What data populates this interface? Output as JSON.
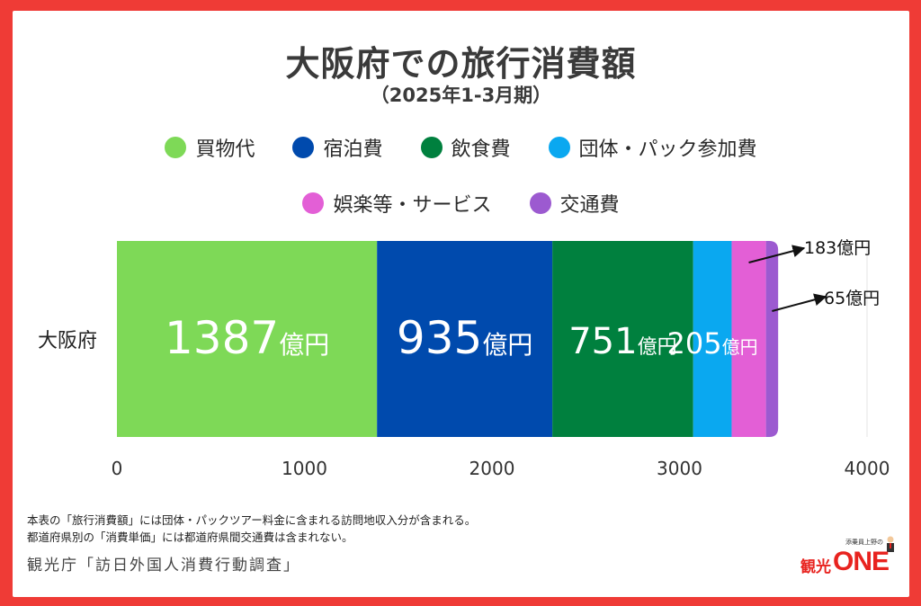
{
  "title": "大阪府での旅行消費額",
  "subtitle": "（2025年1-3月期）",
  "colors": {
    "background": "#ef3b36",
    "card": "#ffffff"
  },
  "chart_data": {
    "type": "bar",
    "orientation": "horizontal",
    "stacked": true,
    "categories": [
      "大阪府"
    ],
    "unit": "億円",
    "xlim": [
      0,
      4000
    ],
    "xticks": [
      0,
      1000,
      2000,
      3000,
      4000
    ],
    "grid": false,
    "legend_position": "top",
    "series": [
      {
        "name": "買物代",
        "values": [
          1387
        ],
        "color": "#7ed957",
        "label_num": "1387",
        "label_unit": "億円"
      },
      {
        "name": "宿泊費",
        "values": [
          935
        ],
        "color": "#004aad",
        "label_num": "935",
        "label_unit": "億円"
      },
      {
        "name": "飲食費",
        "values": [
          751
        ],
        "color": "#00803e",
        "label_num": "751",
        "label_unit": "億円"
      },
      {
        "name": "団体・パック参加費",
        "values": [
          205
        ],
        "color": "#0aa8f0",
        "label_num": "205",
        "label_unit": "億円"
      },
      {
        "name": "娯楽等・サービス",
        "values": [
          183
        ],
        "color": "#e35fd6",
        "label_num": "183",
        "label_unit": "億円"
      },
      {
        "name": "交通費",
        "values": [
          65
        ],
        "color": "#9c5ad0",
        "label_num": "65",
        "label_unit": "億円"
      }
    ],
    "callouts": [
      "183億円",
      "65億円"
    ]
  },
  "footnotes": [
    "本表の「旅行消費額」には団体・パックツアー料金に含まれる訪問地収入分が含まれる。",
    "都道府県別の「消費単価」には都道府県間交通費は含まれない。"
  ],
  "source": "観光庁「訪日外国人消費行動調査」",
  "brand": {
    "tagline": "添乗員上野の",
    "kanji": "観光",
    "word": "ONE"
  }
}
